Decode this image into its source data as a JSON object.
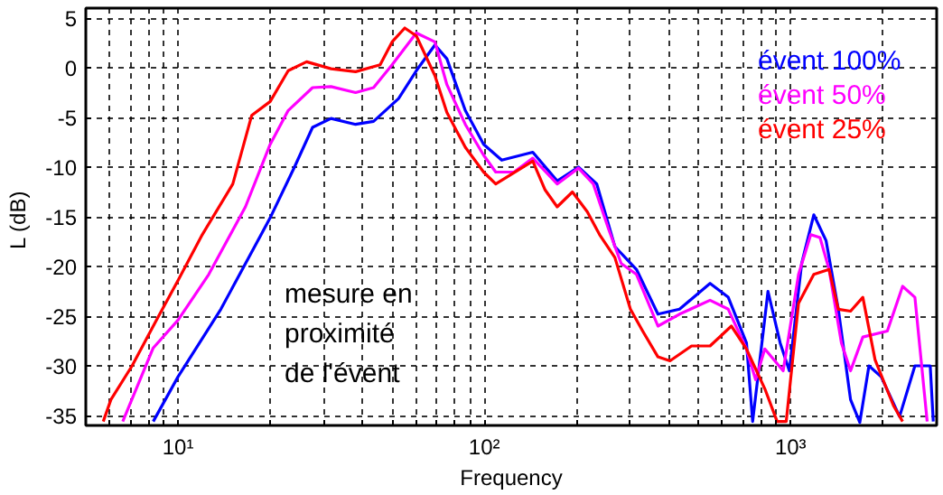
{
  "chart_data": {
    "type": "line",
    "xlabel": "Frequency",
    "ylabel": "L  (dB)",
    "log": "x",
    "grid": true,
    "line_style": "solid",
    "xlim": [
      5,
      3000
    ],
    "ylim": [
      -36,
      6
    ],
    "xticks": [
      {
        "value": 5,
        "label": null
      },
      {
        "value": 6,
        "label": null
      },
      {
        "value": 7,
        "label": null
      },
      {
        "value": 8,
        "label": null
      },
      {
        "value": 9,
        "label": null
      },
      {
        "value": 10,
        "label": "10¹"
      },
      {
        "value": 20,
        "label": null
      },
      {
        "value": 30,
        "label": null
      },
      {
        "value": 40,
        "label": null
      },
      {
        "value": 50,
        "label": null
      },
      {
        "value": 60,
        "label": null
      },
      {
        "value": 70,
        "label": null
      },
      {
        "value": 80,
        "label": null
      },
      {
        "value": 90,
        "label": null
      },
      {
        "value": 100,
        "label": "10²"
      },
      {
        "value": 200,
        "label": null
      },
      {
        "value": 300,
        "label": null
      },
      {
        "value": 400,
        "label": null
      },
      {
        "value": 500,
        "label": null
      },
      {
        "value": 600,
        "label": null
      },
      {
        "value": 700,
        "label": null
      },
      {
        "value": 800,
        "label": null
      },
      {
        "value": 900,
        "label": null
      },
      {
        "value": 1000,
        "label": "10³"
      },
      {
        "value": 2000,
        "label": null
      },
      {
        "value": 3000,
        "label": null
      }
    ],
    "yticks": [
      -35,
      -30,
      -25,
      -20,
      -15,
      -10,
      -5,
      0,
      5
    ],
    "annotations": [
      "mesure en\nproximité\nde  l'évent"
    ],
    "series": [
      {
        "name": "évent 100%",
        "color": "#0000ff",
        "x": [
          8.3,
          10,
          13.8,
          20,
          24,
          27.5,
          31.6,
          38,
          43.5,
          52.5,
          60,
          69,
          75.5,
          86.7,
          99.5,
          114,
          144,
          173,
          203,
          233,
          267,
          314,
          369,
          434,
          546,
          626,
          718,
          752,
          844,
          925,
          991,
          1087,
          1191,
          1306,
          1432,
          1570,
          1683,
          1803,
          1977,
          2270,
          2547,
          2858,
          2924
        ],
        "values": [
          -35.6,
          -31.1,
          -24.3,
          -15.1,
          -10,
          -6,
          -5.1,
          -5.7,
          -5.4,
          -3.1,
          -0.3,
          2.3,
          0.9,
          -4.3,
          -7.7,
          -9.3,
          -8.5,
          -11.4,
          -10,
          -11.7,
          -18,
          -20.3,
          -24.8,
          -24.3,
          -21.7,
          -23.1,
          -27.7,
          -35.6,
          -22.5,
          -27.7,
          -30.5,
          -19.7,
          -14.8,
          -17.4,
          -24.3,
          -33.4,
          -35.7,
          -30,
          -31.1,
          -35.1,
          -30,
          -30,
          -35.6
        ]
      },
      {
        "name": "évent  50%",
        "color": "#ff00ff",
        "x": [
          6.6,
          8.3,
          10,
          12.6,
          16.6,
          20,
          22.9,
          27.5,
          31.6,
          38,
          43.5,
          50,
          60,
          69,
          75.5,
          86.7,
          99.5,
          109,
          125,
          144,
          173,
          203,
          227,
          255,
          280,
          314,
          369,
          434,
          546,
          626,
          718,
          769,
          824,
          946,
          1062,
          1164,
          1248,
          1336,
          1466,
          1570,
          1722,
          2070,
          2322,
          2547,
          2793
        ],
        "values": [
          -35.6,
          -28.2,
          -25.4,
          -20.8,
          -14,
          -7.7,
          -4.3,
          -2,
          -1.9,
          -2.5,
          -2,
          0.3,
          3.5,
          2.6,
          -1.7,
          -5.7,
          -8.8,
          -10.5,
          -10.5,
          -9.1,
          -11.7,
          -10.1,
          -11.7,
          -16.3,
          -19.7,
          -20.8,
          -26,
          -24.8,
          -23.4,
          -24.3,
          -28.3,
          -31.4,
          -28.3,
          -30.5,
          -20.8,
          -16.8,
          -17.1,
          -20.3,
          -27.7,
          -30.5,
          -27.1,
          -26.5,
          -22,
          -23.1,
          -35.6
        ]
      },
      {
        "name": "évent  25%",
        "color": "#ff0000",
        "x": [
          5.7,
          6.04,
          7.08,
          8.5,
          10,
          12,
          15.1,
          17.4,
          20,
          22.9,
          26.3,
          31.6,
          38,
          45.7,
          50,
          55,
          60,
          69,
          75.5,
          86.7,
          99.5,
          109,
          144,
          158,
          173,
          194,
          217,
          238,
          267,
          300,
          329,
          369,
          404,
          475,
          546,
          641,
          718,
          824,
          904,
          968,
          1062,
          1191,
          1336,
          1432,
          1570,
          1722,
          1888,
          2168,
          2322
        ],
        "values": [
          -35.6,
          -33.4,
          -30,
          -25.4,
          -21.4,
          -16.8,
          -11.7,
          -4.8,
          -3.4,
          -0.3,
          0.6,
          -0.1,
          -0.4,
          0.3,
          2.6,
          4,
          3.2,
          -0.8,
          -4.5,
          -8,
          -10.5,
          -11.7,
          -9.4,
          -12.3,
          -14,
          -12.5,
          -14.5,
          -16.8,
          -19.1,
          -24.3,
          -26.5,
          -29.1,
          -29.5,
          -28,
          -28,
          -26,
          -28.3,
          -32.3,
          -35.6,
          -35.6,
          -23.7,
          -20.8,
          -20.3,
          -24.3,
          -24.5,
          -23.1,
          -29.4,
          -34,
          -35.6
        ]
      }
    ]
  }
}
